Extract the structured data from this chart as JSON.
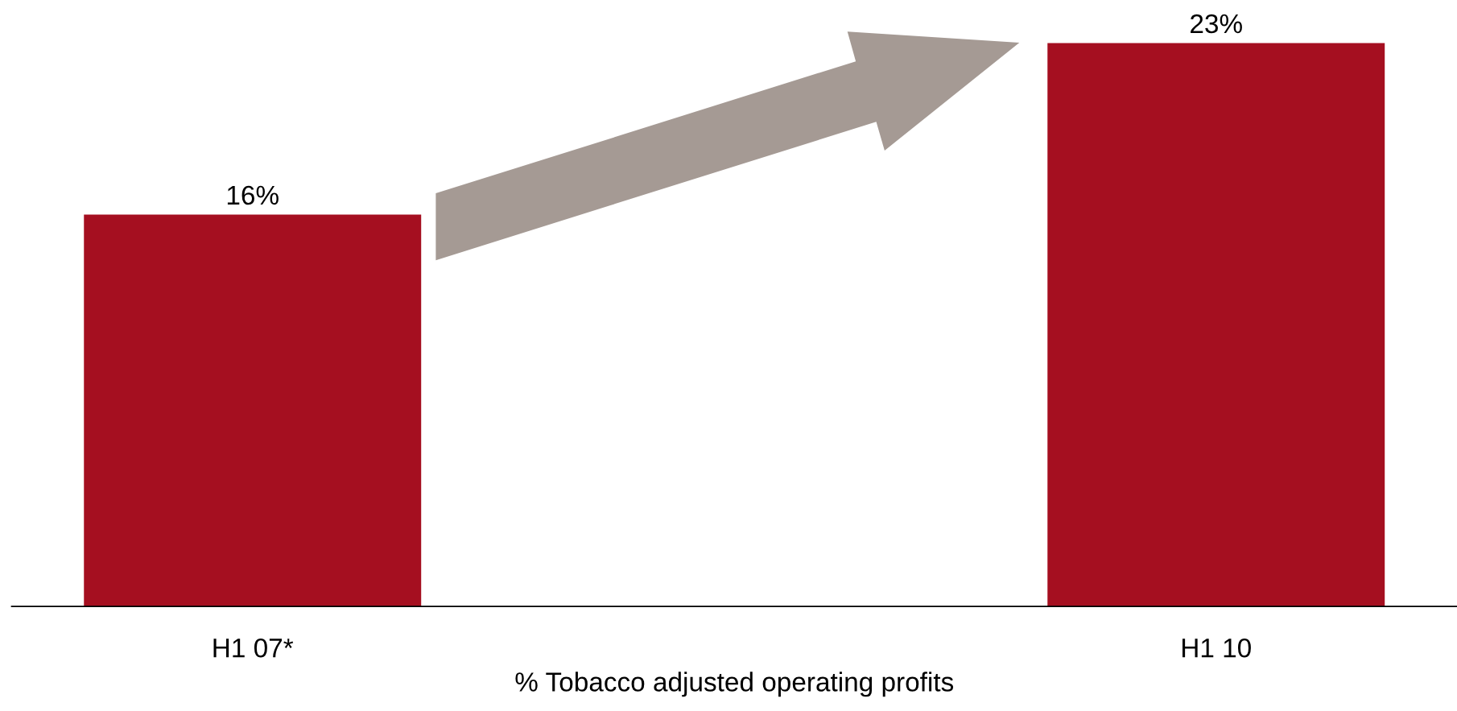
{
  "chart_data": {
    "type": "bar",
    "xlabel": "% Tobacco adjusted operating profits",
    "categories": [
      "H1 07*",
      "H1 10"
    ],
    "values": [
      16,
      23
    ],
    "color": "#a50f20",
    "value_labels": [
      "16%",
      "23%"
    ]
  }
}
